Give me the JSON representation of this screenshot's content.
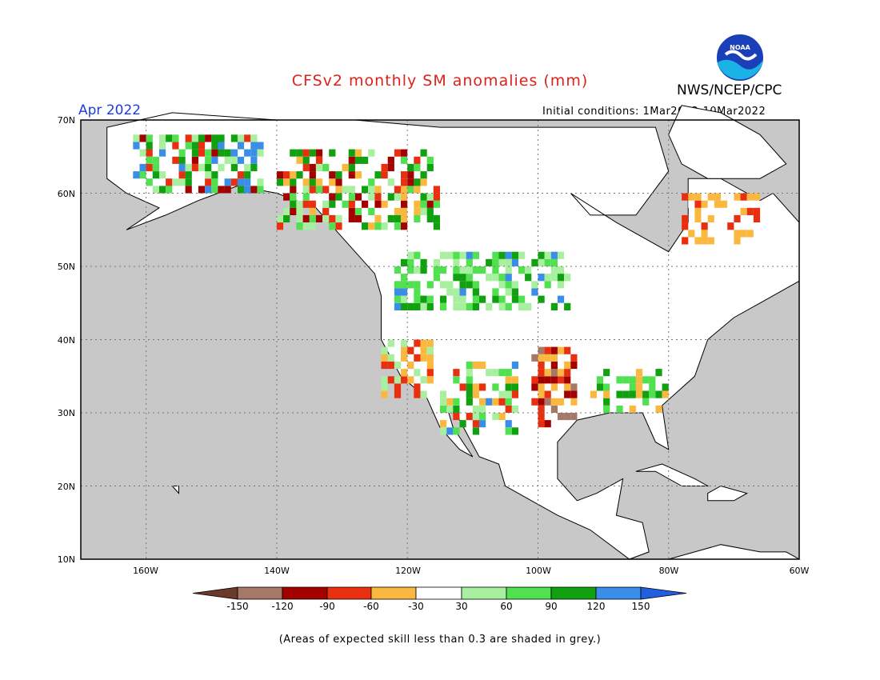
{
  "header": {
    "title": "CFSv2 monthly SM anomalies (mm)",
    "agency": "NWS/NCEP/CPC",
    "logo_text": "NOAA",
    "period": "Apr 2022",
    "initial_conditions": "Initial conditions: 1Mar2022-10Mar2022"
  },
  "map": {
    "lat_labels": [
      "70N",
      "60N",
      "50N",
      "40N",
      "30N",
      "20N",
      "10N"
    ],
    "lon_labels": [
      "160W",
      "140W",
      "120W",
      "100W",
      "80W",
      "60W"
    ],
    "lat_range": [
      10,
      70
    ],
    "lon_range": [
      -170,
      -60
    ],
    "ocean_color": "#c8c8c8",
    "land_color": "#ffffff",
    "grid": "dotted"
  },
  "legend": {
    "tick_labels": [
      "-150",
      "-120",
      "-90",
      "-60",
      "-30",
      "30",
      "60",
      "90",
      "120",
      "150"
    ],
    "colors": [
      "#6b3a2a",
      "#a67868",
      "#a30000",
      "#e83010",
      "#fbb840",
      "#ffffff",
      "#a8f0a0",
      "#50e050",
      "#10a010",
      "#3a8ee8",
      "#2060e0"
    ]
  },
  "footnote": "(Areas of expected skill less than 0.3 are shaded in grey.)"
}
